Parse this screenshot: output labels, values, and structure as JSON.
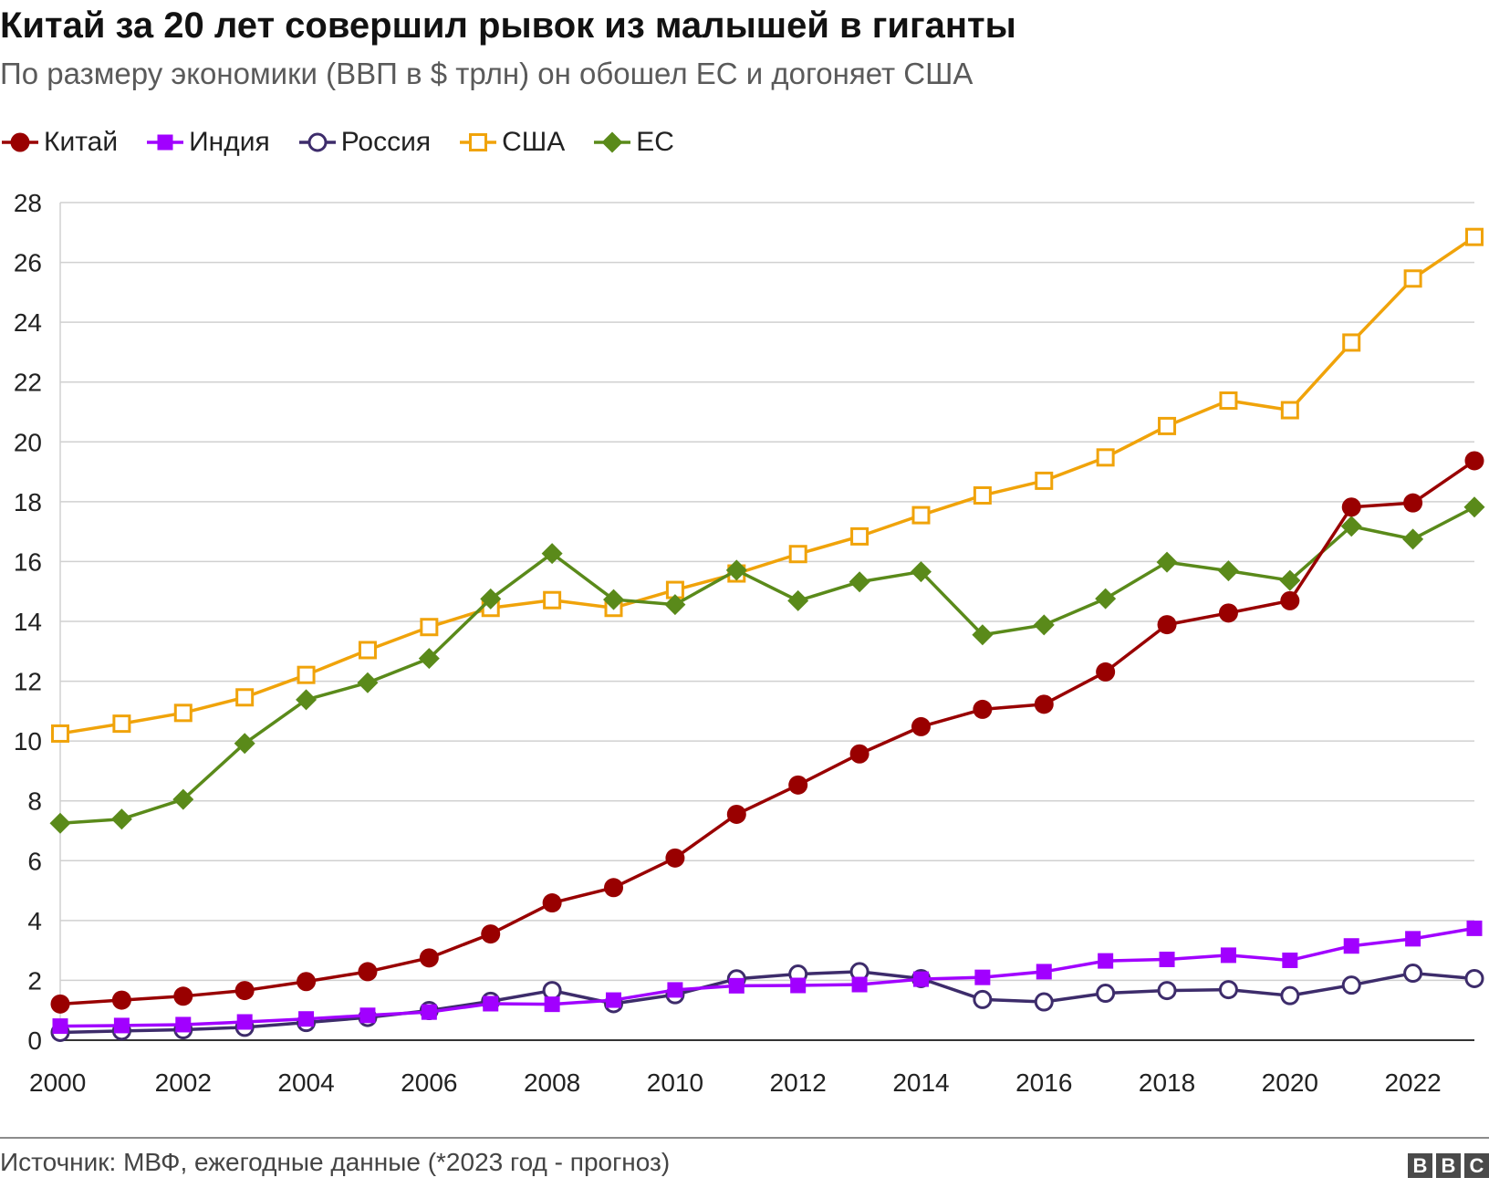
{
  "header": {
    "title": "Китай за 20 лет совершил рывок из малышей в гиганты",
    "subtitle": "По размеру экономики (ВВП в $ трлн) он обошел ЕС и догоняет США"
  },
  "footer": {
    "source": "Источник: МВФ, ежегодные данные (*2023 год - прогноз)",
    "logo_letters": [
      "B",
      "B",
      "C"
    ]
  },
  "chart_data": {
    "type": "line",
    "x": [
      2000,
      2001,
      2002,
      2003,
      2004,
      2005,
      2006,
      2007,
      2008,
      2009,
      2010,
      2011,
      2012,
      2013,
      2014,
      2015,
      2016,
      2017,
      2018,
      2019,
      2020,
      2021,
      2022,
      2023
    ],
    "xticks": [
      "2000",
      "2002",
      "2004",
      "2006",
      "2008",
      "2010",
      "2012",
      "2014",
      "2016",
      "2018",
      "2020",
      "2022"
    ],
    "yticks": [
      "0",
      "2",
      "4",
      "6",
      "8",
      "10",
      "12",
      "14",
      "16",
      "18",
      "20",
      "22",
      "24",
      "26",
      "28"
    ],
    "ylim": [
      0,
      28
    ],
    "grid": true,
    "legend_position": "top-left",
    "series": [
      {
        "name": "Китай",
        "color": "#990000",
        "marker": "circle-filled",
        "values": [
          1.21,
          1.34,
          1.47,
          1.66,
          1.96,
          2.29,
          2.75,
          3.55,
          4.59,
          5.1,
          6.09,
          7.55,
          8.53,
          9.57,
          10.48,
          11.06,
          11.23,
          12.31,
          13.89,
          14.28,
          14.69,
          17.82,
          17.96,
          19.37
        ]
      },
      {
        "name": "Индия",
        "color": "#a100ff",
        "marker": "square-filled",
        "values": [
          0.47,
          0.49,
          0.52,
          0.61,
          0.71,
          0.83,
          0.94,
          1.22,
          1.2,
          1.34,
          1.68,
          1.82,
          1.83,
          1.86,
          2.04,
          2.1,
          2.29,
          2.65,
          2.7,
          2.84,
          2.67,
          3.15,
          3.39,
          3.74
        ]
      },
      {
        "name": "Россия",
        "color": "#3d2c6b",
        "marker": "circle-open",
        "values": [
          0.26,
          0.31,
          0.35,
          0.43,
          0.59,
          0.76,
          0.99,
          1.3,
          1.66,
          1.22,
          1.52,
          2.05,
          2.21,
          2.29,
          2.06,
          1.36,
          1.28,
          1.57,
          1.66,
          1.69,
          1.49,
          1.84,
          2.24,
          2.06
        ]
      },
      {
        "name": "США",
        "color": "#f0a30a",
        "marker": "square-open",
        "values": [
          10.25,
          10.58,
          10.94,
          11.46,
          12.21,
          13.04,
          13.81,
          14.45,
          14.71,
          14.45,
          15.05,
          15.6,
          16.25,
          16.84,
          17.55,
          18.21,
          18.7,
          19.48,
          20.53,
          21.38,
          21.06,
          23.32,
          25.46,
          26.85
        ]
      },
      {
        "name": "ЕС",
        "color": "#5a8a1a",
        "marker": "diamond-filled",
        "values": [
          7.25,
          7.39,
          8.05,
          9.92,
          11.38,
          11.95,
          12.76,
          14.75,
          16.27,
          14.73,
          14.56,
          15.71,
          14.69,
          15.32,
          15.66,
          13.55,
          13.88,
          14.76,
          15.98,
          15.69,
          15.37,
          17.18,
          16.75,
          17.82
        ]
      }
    ]
  }
}
